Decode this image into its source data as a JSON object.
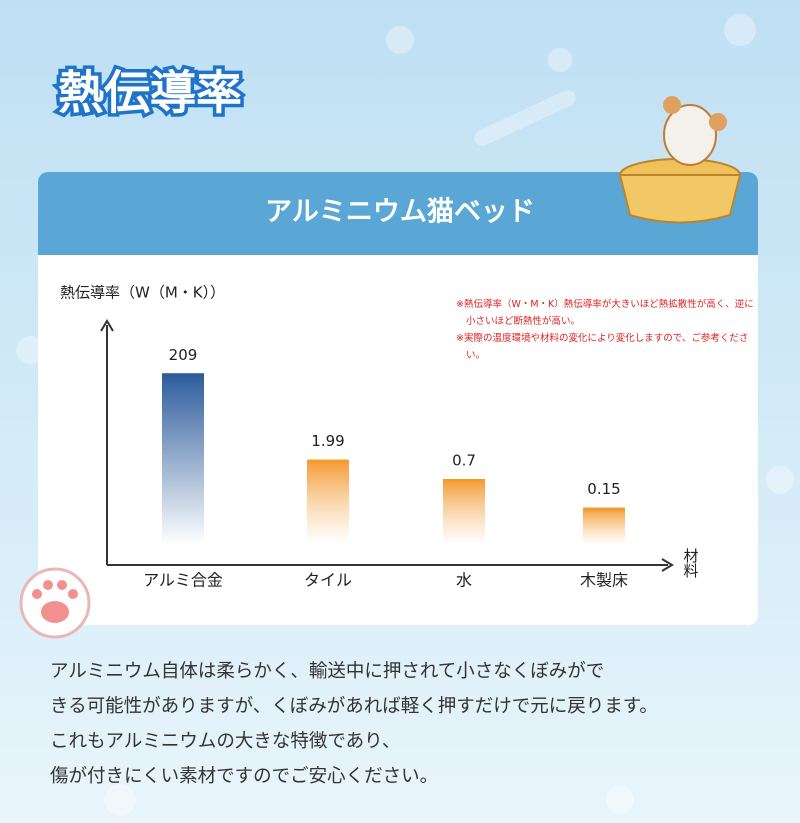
{
  "header": {
    "title": "熱伝導率"
  },
  "card": {
    "title": "アルミニウム猫ベッド"
  },
  "chart_data": {
    "type": "bar",
    "y_label": "熱伝導率（W（M・K））",
    "x_label": "材料",
    "categories": [
      "アルミ合金",
      "タイル",
      "水",
      "木製床"
    ],
    "values": [
      209,
      1.99,
      0.7,
      0.15
    ],
    "colors": [
      "#2d5c9c",
      "#f39b30",
      "#f39b30",
      "#f39b30"
    ],
    "log_scale": true,
    "ylim": [
      0.02,
      250
    ]
  },
  "notes": [
    "※熱伝導率（W・M・K）熱伝導率が大きいほど熱拡散性が高く、逆に小さいほど断熱性が高い。",
    "※実際の温度環境や材料の変化により変化しますので、ご参考ください。"
  ],
  "body": {
    "lines": [
      "アルミニウム自体は柔らかく、輸送中に押されて小さなくぼみがで",
      "きる可能性がありますが、くぼみがあれば軽く押すだけで元に戻ります。",
      "これもアルミニウムの大きな特徴であり、",
      "傷が付きにくい素材ですのでご安心ください。"
    ]
  }
}
